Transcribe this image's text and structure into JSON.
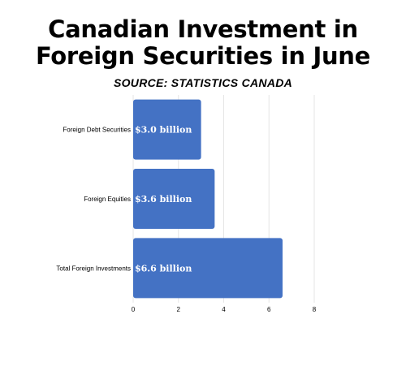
{
  "header": {
    "title_line1": "Canadian Investment in",
    "title_line2": "Foreign Securities in June",
    "subtitle": "SOURCE: STATISTICS CANADA"
  },
  "colors": {
    "bar": "#4472c4",
    "grid": "#e6e6e6",
    "text": "#000000",
    "bar_label": "#ffffff"
  },
  "chart_data": {
    "type": "bar",
    "orientation": "horizontal",
    "categories": [
      "Foreign Debt Securities",
      "Foreign Equities",
      "Total Foreign Investments"
    ],
    "values": [
      3.0,
      3.6,
      6.6
    ],
    "data_labels": [
      "$3.0 billion",
      "$3.6 billion",
      "$6.6 billion"
    ],
    "x_ticks": [
      "0",
      "2",
      "4",
      "6",
      "8"
    ],
    "xlim": [
      0,
      8
    ],
    "grid": true,
    "legend": "none"
  }
}
